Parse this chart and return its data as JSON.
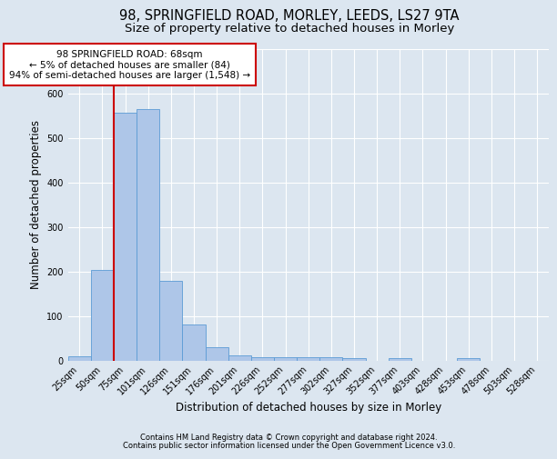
{
  "title1": "98, SPRINGFIELD ROAD, MORLEY, LEEDS, LS27 9TA",
  "title2": "Size of property relative to detached houses in Morley",
  "xlabel": "Distribution of detached houses by size in Morley",
  "ylabel": "Number of detached properties",
  "categories": [
    "25sqm",
    "50sqm",
    "75sqm",
    "101sqm",
    "126sqm",
    "151sqm",
    "176sqm",
    "201sqm",
    "226sqm",
    "252sqm",
    "277sqm",
    "302sqm",
    "327sqm",
    "352sqm",
    "377sqm",
    "403sqm",
    "428sqm",
    "453sqm",
    "478sqm",
    "503sqm",
    "528sqm"
  ],
  "values": [
    10,
    204,
    556,
    565,
    178,
    80,
    29,
    12,
    7,
    7,
    8,
    7,
    6,
    0,
    6,
    0,
    0,
    6,
    0,
    0,
    0
  ],
  "bar_color": "#aec6e8",
  "bar_edge_color": "#5b9bd5",
  "vline_color": "#cc0000",
  "annotation_text": "98 SPRINGFIELD ROAD: 68sqm\n← 5% of detached houses are smaller (84)\n94% of semi-detached houses are larger (1,548) →",
  "annotation_box_color": "#ffffff",
  "annotation_box_edge_color": "#cc0000",
  "ylim": [
    0,
    700
  ],
  "yticks": [
    0,
    100,
    200,
    300,
    400,
    500,
    600,
    700
  ],
  "background_color": "#dce6f0",
  "plot_background_color": "#dce6f0",
  "footer1": "Contains HM Land Registry data © Crown copyright and database right 2024.",
  "footer2": "Contains public sector information licensed under the Open Government Licence v3.0.",
  "title1_fontsize": 10.5,
  "title2_fontsize": 9.5,
  "tick_fontsize": 7,
  "label_fontsize": 8.5,
  "footer_fontsize": 6
}
